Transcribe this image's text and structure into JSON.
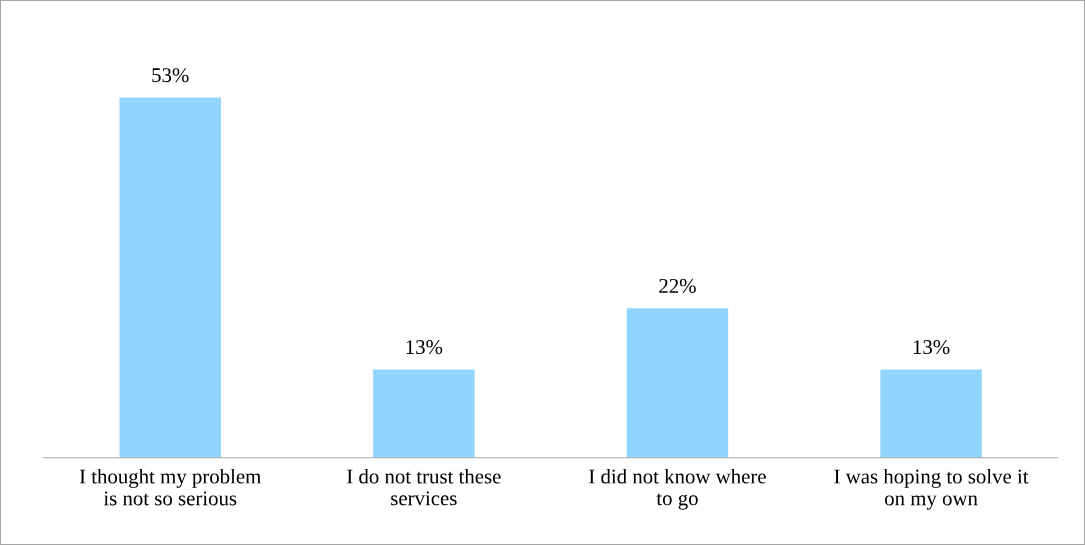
{
  "chart_data": {
    "type": "bar",
    "categories": [
      "I thought my problem\nis not so serious",
      "I do not trust these\nservices",
      "I did not know where\nto go",
      "I was hoping to solve it\non my own"
    ],
    "values": [
      53,
      13,
      22,
      13
    ],
    "value_labels": [
      "53%",
      "13%",
      "22%",
      "13%"
    ],
    "color": "#91d4fe",
    "grid": false,
    "legend": false
  }
}
